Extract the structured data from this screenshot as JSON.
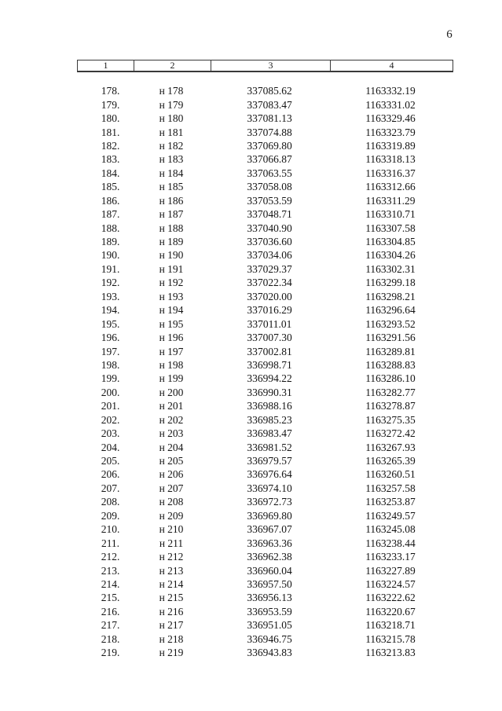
{
  "page": {
    "number": "6"
  },
  "table": {
    "headers": [
      "1",
      "2",
      "3",
      "4"
    ],
    "rows": [
      [
        "178.",
        "н 178",
        "337085.62",
        "1163332.19"
      ],
      [
        "179.",
        "н 179",
        "337083.47",
        "1163331.02"
      ],
      [
        "180.",
        "н 180",
        "337081.13",
        "1163329.46"
      ],
      [
        "181.",
        "н 181",
        "337074.88",
        "1163323.79"
      ],
      [
        "182.",
        "н 182",
        "337069.80",
        "1163319.89"
      ],
      [
        "183.",
        "н 183",
        "337066.87",
        "1163318.13"
      ],
      [
        "184.",
        "н 184",
        "337063.55",
        "1163316.37"
      ],
      [
        "185.",
        "н 185",
        "337058.08",
        "1163312.66"
      ],
      [
        "186.",
        "н 186",
        "337053.59",
        "1163311.29"
      ],
      [
        "187.",
        "н 187",
        "337048.71",
        "1163310.71"
      ],
      [
        "188.",
        "н 188",
        "337040.90",
        "1163307.58"
      ],
      [
        "189.",
        "н 189",
        "337036.60",
        "1163304.85"
      ],
      [
        "190.",
        "н 190",
        "337034.06",
        "1163304.26"
      ],
      [
        "191.",
        "н 191",
        "337029.37",
        "1163302.31"
      ],
      [
        "192.",
        "н 192",
        "337022.34",
        "1163299.18"
      ],
      [
        "193.",
        "н 193",
        "337020.00",
        "1163298.21"
      ],
      [
        "194.",
        "н 194",
        "337016.29",
        "1163296.64"
      ],
      [
        "195.",
        "н 195",
        "337011.01",
        "1163293.52"
      ],
      [
        "196.",
        "н 196",
        "337007.30",
        "1163291.56"
      ],
      [
        "197.",
        "н 197",
        "337002.81",
        "1163289.81"
      ],
      [
        "198.",
        "н 198",
        "336998.71",
        "1163288.83"
      ],
      [
        "199.",
        "н 199",
        "336994.22",
        "1163286.10"
      ],
      [
        "200.",
        "н 200",
        "336990.31",
        "1163282.77"
      ],
      [
        "201.",
        "н 201",
        "336988.16",
        "1163278.87"
      ],
      [
        "202.",
        "н 202",
        "336985.23",
        "1163275.35"
      ],
      [
        "203.",
        "н 203",
        "336983.47",
        "1163272.42"
      ],
      [
        "204.",
        "н 204",
        "336981.52",
        "1163267.93"
      ],
      [
        "205.",
        "н 205",
        "336979.57",
        "1163265.39"
      ],
      [
        "206.",
        "н 206",
        "336976.64",
        "1163260.51"
      ],
      [
        "207.",
        "н 207",
        "336974.10",
        "1163257.58"
      ],
      [
        "208.",
        "н 208",
        "336972.73",
        "1163253.87"
      ],
      [
        "209.",
        "н 209",
        "336969.80",
        "1163249.57"
      ],
      [
        "210.",
        "н 210",
        "336967.07",
        "1163245.08"
      ],
      [
        "211.",
        "н 211",
        "336963.36",
        "1163238.44"
      ],
      [
        "212.",
        "н 212",
        "336962.38",
        "1163233.17"
      ],
      [
        "213.",
        "н 213",
        "336960.04",
        "1163227.89"
      ],
      [
        "214.",
        "н 214",
        "336957.50",
        "1163224.57"
      ],
      [
        "215.",
        "н 215",
        "336956.13",
        "1163222.62"
      ],
      [
        "216.",
        "н 216",
        "336953.59",
        "1163220.67"
      ],
      [
        "217.",
        "н 217",
        "336951.05",
        "1163218.71"
      ],
      [
        "218.",
        "н 218",
        "336946.75",
        "1163215.78"
      ],
      [
        "219.",
        "н 219",
        "336943.83",
        "1163213.83"
      ]
    ]
  }
}
